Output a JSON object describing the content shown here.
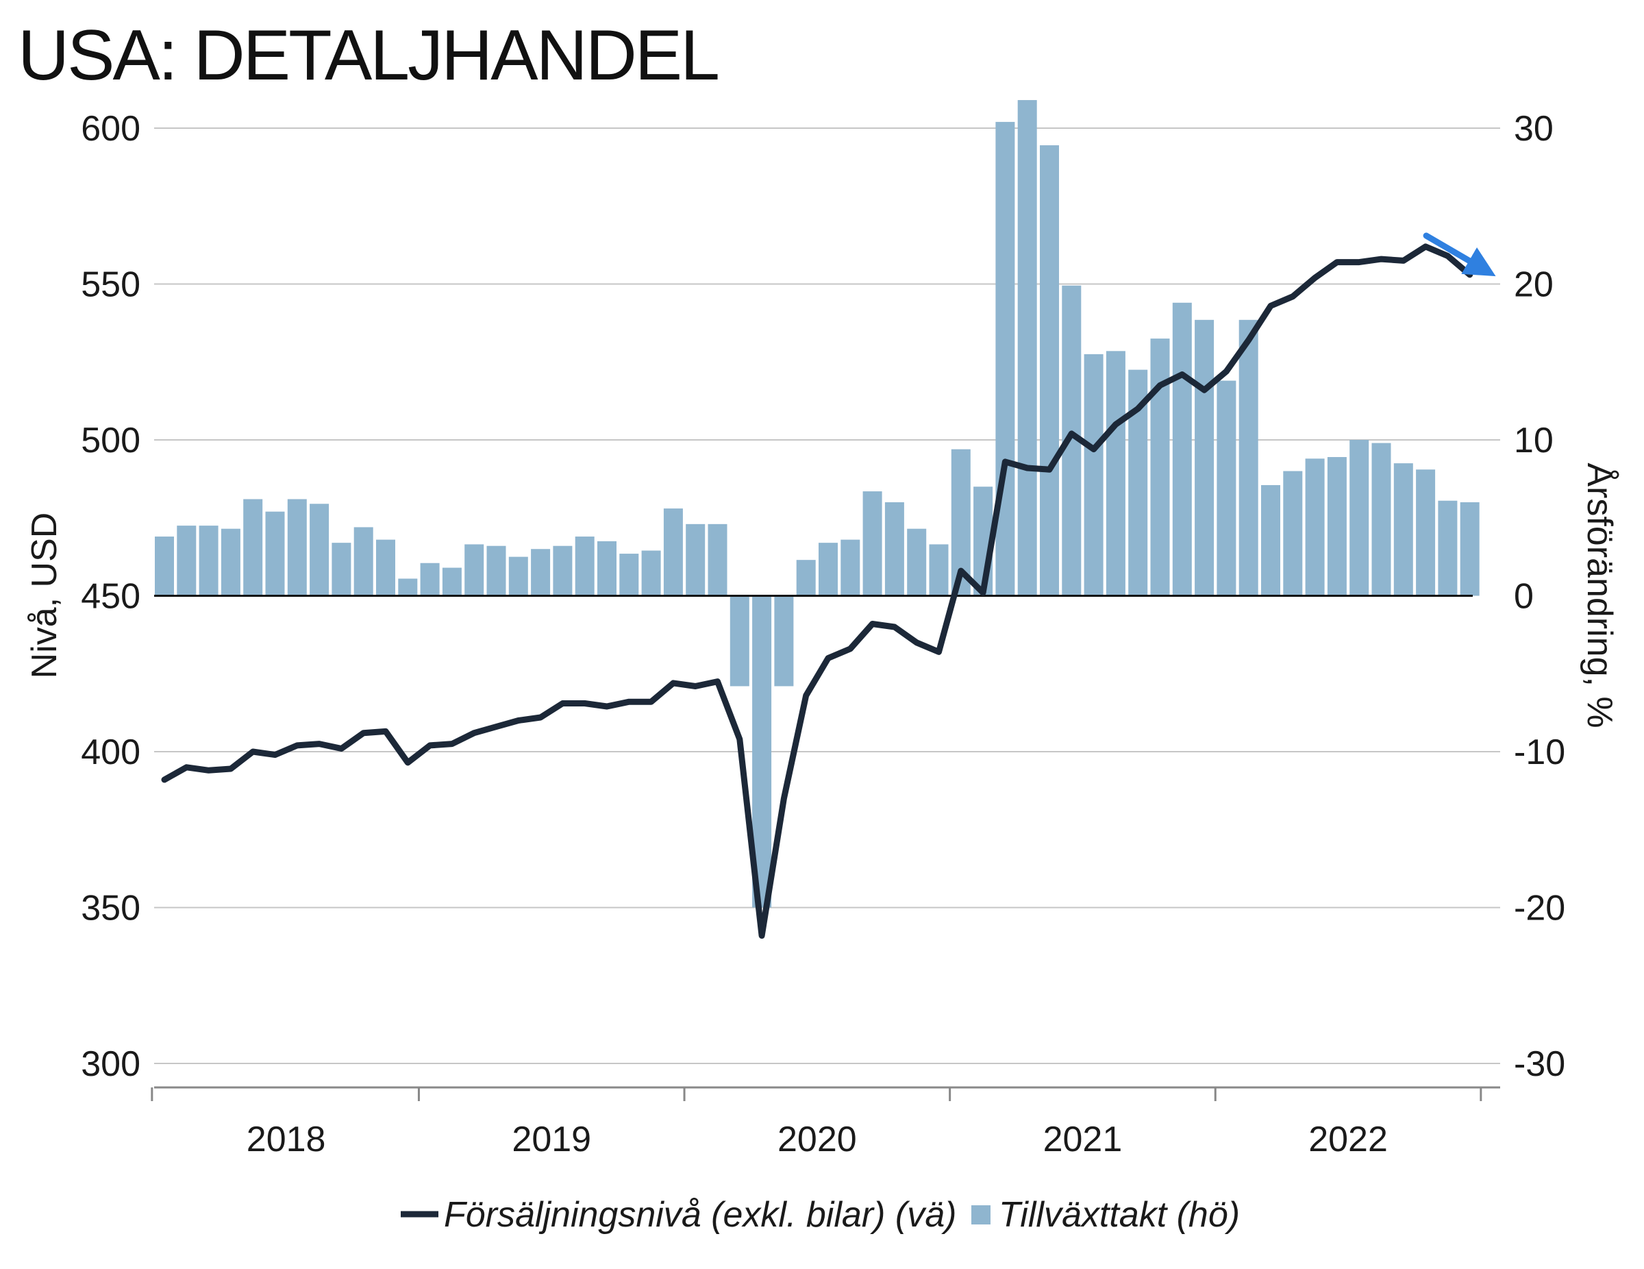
{
  "chart_data": {
    "type": "bar+line",
    "title": "USA: DETALJHANDEL",
    "ylabel_left": "Nivå, USD",
    "ylabel_right": "Årsförändring, %",
    "ylim_left": [
      300,
      600
    ],
    "ylim_right": [
      -30,
      30
    ],
    "yticks_left": [
      "600",
      "550",
      "500",
      "450",
      "400",
      "350",
      "300"
    ],
    "yticks_right": [
      "30",
      "20",
      "10",
      "0",
      "-10",
      "-20",
      "-30"
    ],
    "x_tick_labels": [
      "2018",
      "2019",
      "2020",
      "2021",
      "2022"
    ],
    "grid": true,
    "legend_position": "bottom",
    "start_month": "2018-01",
    "series": [
      {
        "name": "Försäljningsnivå (exkl. bilar) (vä)",
        "type": "line",
        "axis": "left",
        "color": "#1c2838",
        "values": [
          391,
          395,
          394,
          394.5,
          400,
          399,
          402,
          402.5,
          401,
          406,
          406.5,
          396.5,
          402,
          402.5,
          406,
          408,
          410,
          411,
          415.5,
          415.5,
          414.5,
          416,
          416,
          422,
          421,
          422.5,
          404,
          341,
          385,
          418,
          430,
          433,
          441,
          440,
          435,
          432,
          458,
          451,
          493,
          491,
          490.5,
          502,
          497,
          505,
          510,
          517.5,
          521,
          516,
          522,
          532,
          543,
          546,
          552,
          557,
          557,
          558,
          557.5,
          562,
          559,
          553
        ]
      },
      {
        "name": "Tillväxttakt (hö)",
        "type": "bar",
        "axis": "right",
        "color": "#8fb5cf",
        "values": [
          3.8,
          4.5,
          4.5,
          4.3,
          6.2,
          5.4,
          6.2,
          5.9,
          3.4,
          4.4,
          3.6,
          1.1,
          2.1,
          1.8,
          3.3,
          3.2,
          2.5,
          3.0,
          3.2,
          3.8,
          3.5,
          2.7,
          2.9,
          5.6,
          4.6,
          4.6,
          -5.8,
          -20.0,
          -5.8,
          2.3,
          3.4,
          3.6,
          6.7,
          6.0,
          4.3,
          3.3,
          9.4,
          7.0,
          30.4,
          31.8,
          28.9,
          19.9,
          15.5,
          15.7,
          14.5,
          16.5,
          18.8,
          17.7,
          13.8,
          17.7,
          7.1,
          8.0,
          8.8,
          8.9,
          10.0,
          9.8,
          8.5,
          8.1,
          6.1,
          6.0
        ]
      }
    ],
    "annotation": {
      "icon": "down-right-arrow-icon",
      "color": "#2f80e0"
    }
  }
}
